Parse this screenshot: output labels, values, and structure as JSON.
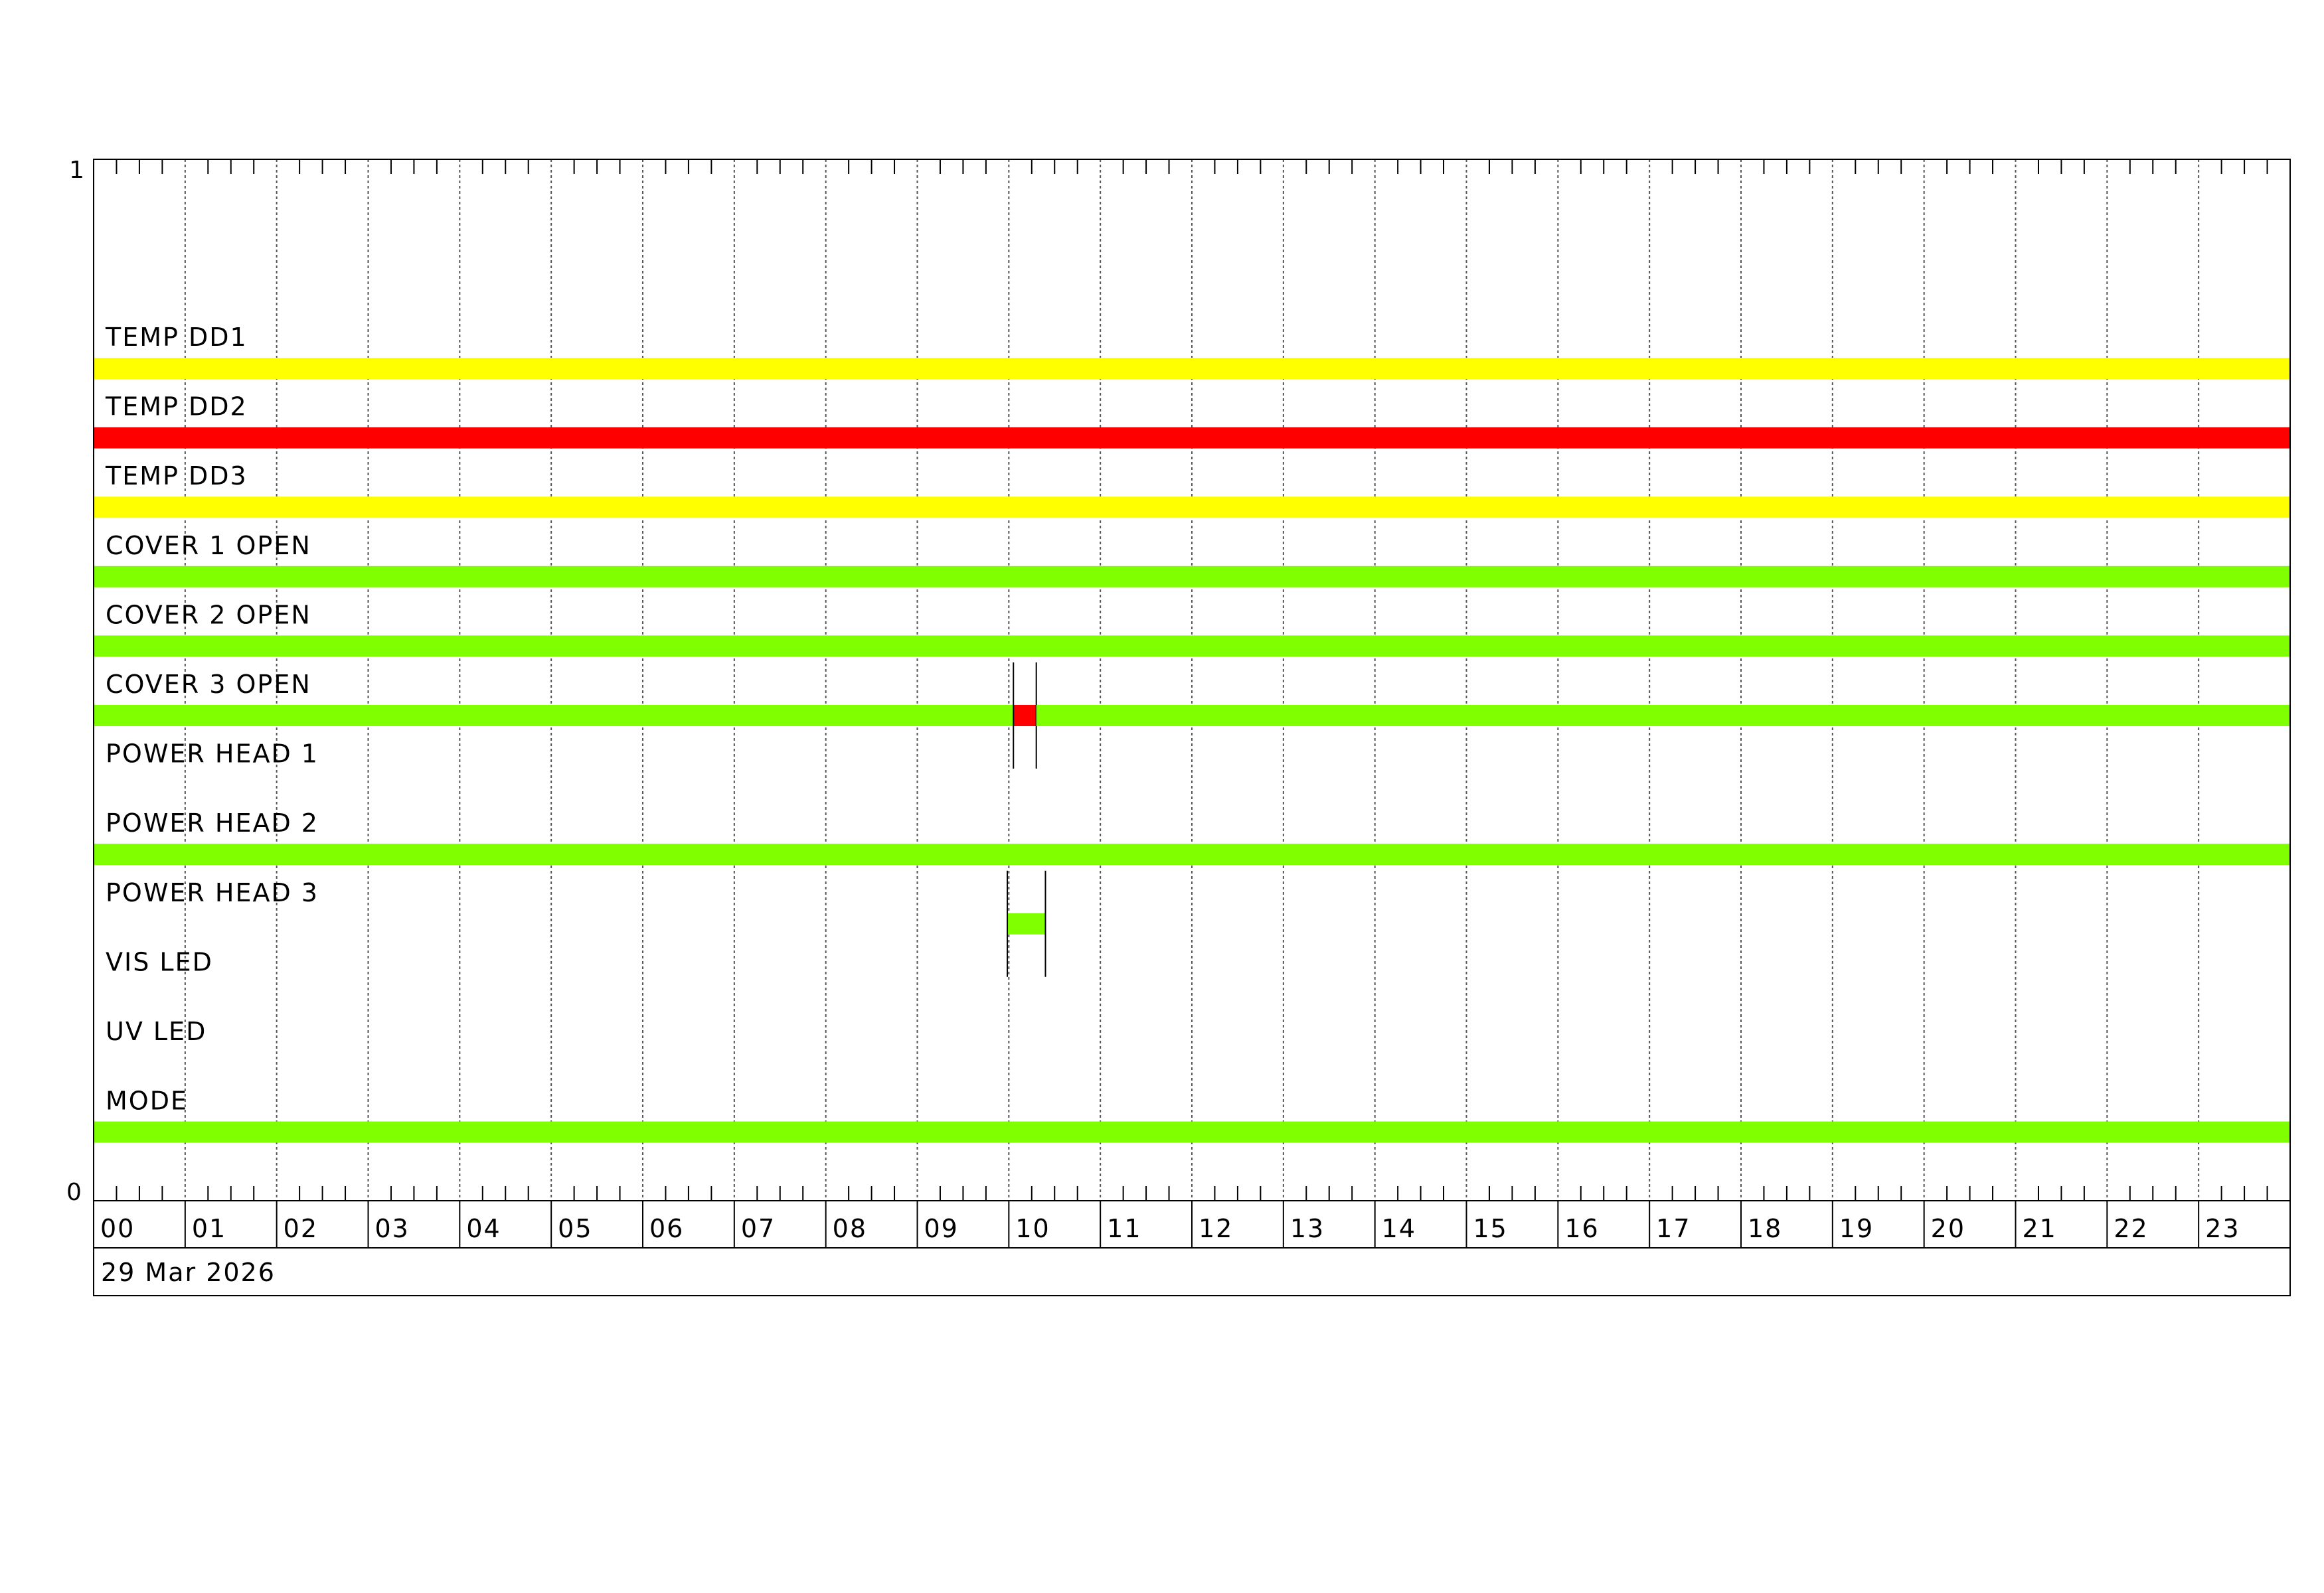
{
  "chart_data": {
    "type": "timeline",
    "date_label": "29 Mar 2026",
    "y_axis": {
      "top_label": "1",
      "bottom_label": "0",
      "ylim": [
        0,
        1
      ]
    },
    "x_axis": {
      "unit": "hour",
      "range": [
        "00:00",
        "24:00"
      ],
      "tick_labels": [
        "00",
        "01",
        "02",
        "03",
        "04",
        "05",
        "06",
        "07",
        "08",
        "09",
        "10",
        "11",
        "12",
        "13",
        "14",
        "15",
        "16",
        "17",
        "18",
        "19",
        "20",
        "21",
        "22",
        "23"
      ],
      "minor_ticks_per_hour": 4,
      "grid": "dashed-hourly"
    },
    "colors": {
      "ok": "#7fff00",
      "warning": "#ffff00",
      "alarm": "#ff0000"
    },
    "rows": [
      {
        "label": "TEMP DD1",
        "segments": [
          {
            "start": "00:00",
            "end": "24:00",
            "state": "warning"
          }
        ]
      },
      {
        "label": "TEMP DD2",
        "segments": [
          {
            "start": "00:00",
            "end": "24:00",
            "state": "alarm"
          }
        ]
      },
      {
        "label": "TEMP DD3",
        "segments": [
          {
            "start": "00:00",
            "end": "24:00",
            "state": "warning"
          }
        ]
      },
      {
        "label": "COVER 1 OPEN",
        "segments": [
          {
            "start": "00:00",
            "end": "24:00",
            "state": "ok"
          }
        ]
      },
      {
        "label": "COVER 2 OPEN",
        "segments": [
          {
            "start": "00:00",
            "end": "24:00",
            "state": "ok"
          }
        ]
      },
      {
        "label": "COVER 3 OPEN",
        "segments": [
          {
            "start": "00:00",
            "end": "10:03",
            "state": "ok"
          },
          {
            "start": "10:03",
            "end": "10:18",
            "state": "alarm",
            "marked": true
          },
          {
            "start": "10:18",
            "end": "24:00",
            "state": "ok"
          }
        ]
      },
      {
        "label": "POWER HEAD 1",
        "segments": []
      },
      {
        "label": "POWER HEAD 2",
        "segments": [
          {
            "start": "00:00",
            "end": "24:00",
            "state": "ok"
          }
        ]
      },
      {
        "label": "POWER HEAD 3",
        "segments": [
          {
            "start": "09:59",
            "end": "10:24",
            "state": "ok",
            "marked": true
          }
        ]
      },
      {
        "label": "VIS LED",
        "segments": []
      },
      {
        "label": "UV LED",
        "segments": []
      },
      {
        "label": "MODE",
        "segments": [
          {
            "start": "00:00",
            "end": "24:00",
            "state": "ok"
          }
        ]
      }
    ]
  }
}
